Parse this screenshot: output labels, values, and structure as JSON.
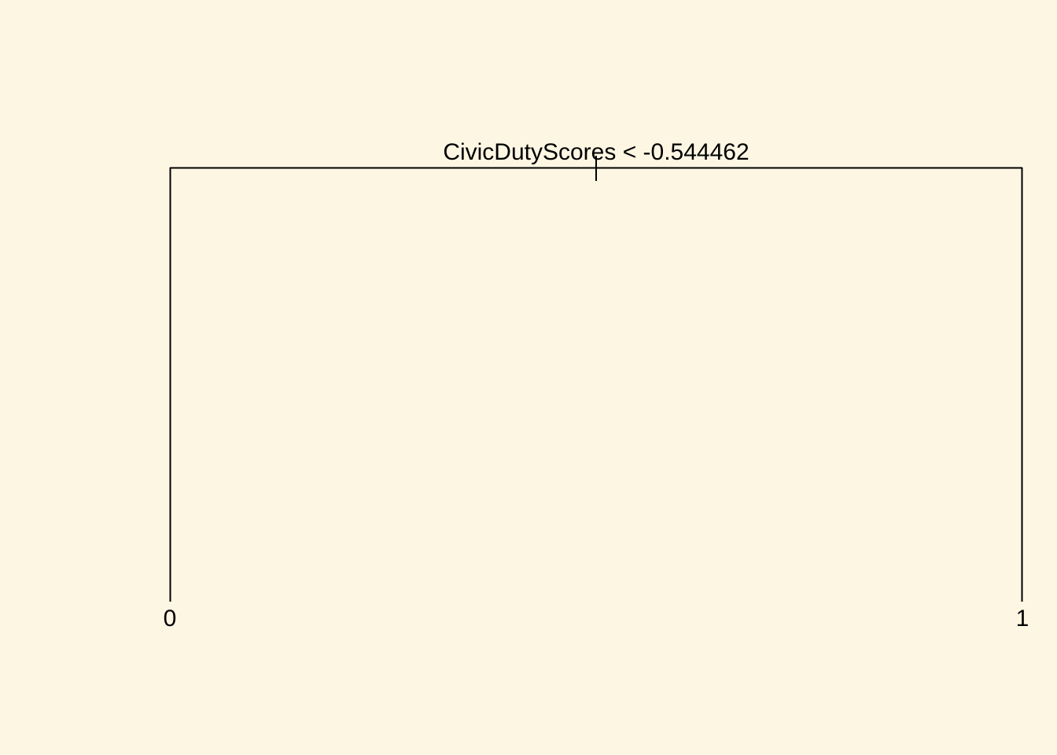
{
  "colors": {
    "background": "#fdf6e3",
    "line": "#000000",
    "text": "#000000"
  },
  "tree": {
    "root": {
      "split_label": "CivicDutyScores < -0.544462"
    },
    "leaves": [
      {
        "label": "0"
      },
      {
        "label": "1"
      }
    ]
  }
}
